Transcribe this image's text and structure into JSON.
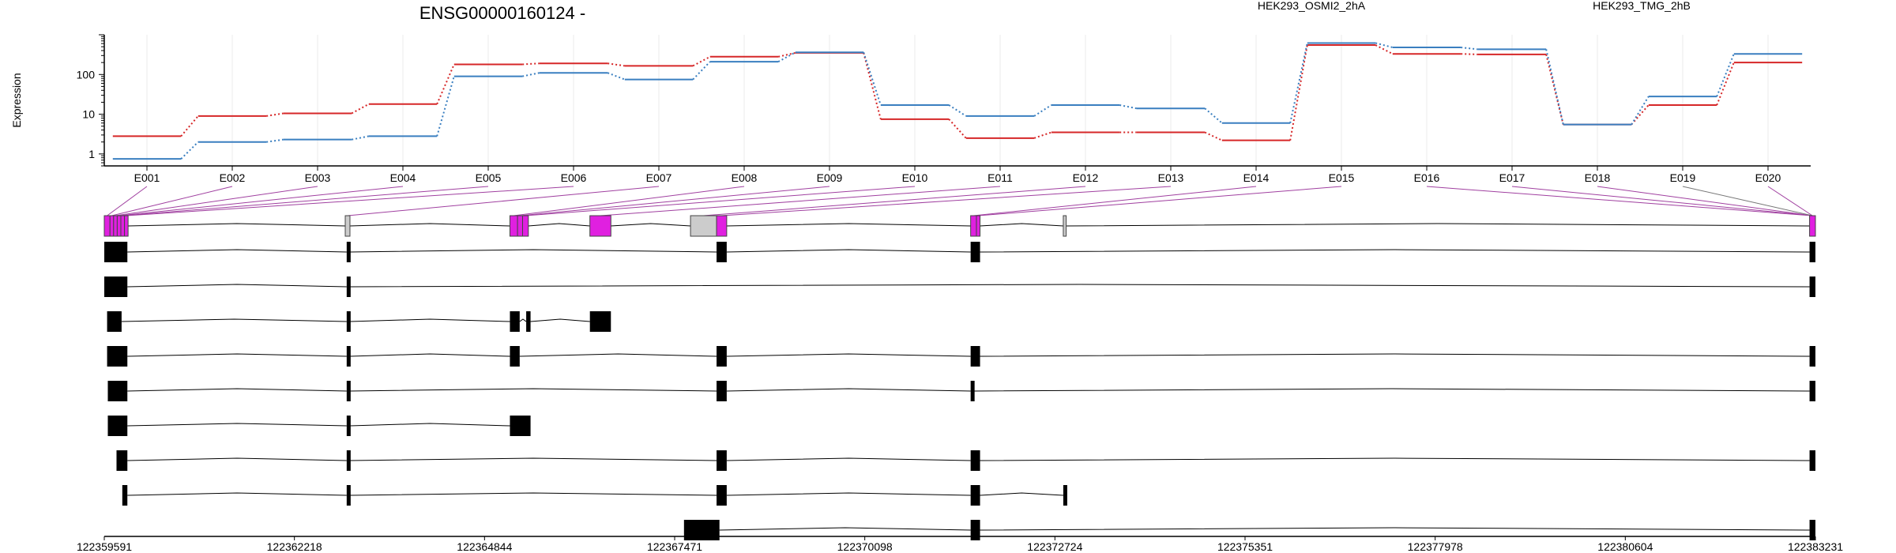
{
  "chart_data": {
    "type": "line",
    "title": "ENSG00000160124 -",
    "ylabel": "Expression",
    "yscale": "log",
    "ylim": [
      0.5,
      1000
    ],
    "ytick_labels": [
      "1",
      "10",
      "100"
    ],
    "ytick_values": [
      1,
      10,
      100
    ],
    "grid": true,
    "legend_position": "top-right",
    "categories": [
      "E001",
      "E002",
      "E003",
      "E004",
      "E005",
      "E006",
      "E007",
      "E008",
      "E009",
      "E010",
      "E011",
      "E012",
      "E013",
      "E014",
      "E015",
      "E016",
      "E017",
      "E018",
      "E019",
      "E020"
    ],
    "series": [
      {
        "name": "HEK293_OSMI2_2hA",
        "color": "#d62728",
        "values": [
          2.8,
          9.0,
          10.5,
          18,
          180,
          190,
          165,
          280,
          350,
          7.5,
          2.5,
          3.5,
          3.5,
          2.2,
          550,
          330,
          320,
          5.5,
          17,
          200
        ]
      },
      {
        "name": "HEK293_TMG_2hB",
        "color": "#3a7fc0",
        "values": [
          0.75,
          2.0,
          2.3,
          2.8,
          90,
          110,
          75,
          210,
          360,
          17,
          9.0,
          17,
          14,
          6.0,
          620,
          480,
          430,
          5.5,
          28,
          330
        ]
      }
    ],
    "gene_model": {
      "coord_range": [
        122359591,
        122383231
      ],
      "coord_tick_labels": [
        "122359591",
        "122362218",
        "122364844",
        "122367471",
        "122370098",
        "122372724",
        "122375351",
        "122377978",
        "122380604",
        "122383231"
      ],
      "exon_bins": [
        {
          "start": 122359591,
          "end": 122359670,
          "status": "tested"
        },
        {
          "start": 122359670,
          "end": 122359720,
          "status": "tested"
        },
        {
          "start": 122359720,
          "end": 122359770,
          "status": "tested"
        },
        {
          "start": 122359770,
          "end": 122359820,
          "status": "tested"
        },
        {
          "start": 122359820,
          "end": 122359870,
          "status": "tested"
        },
        {
          "start": 122359870,
          "end": 122359920,
          "status": "tested"
        },
        {
          "start": 122362920,
          "end": 122362985,
          "status": "untested"
        },
        {
          "start": 122365195,
          "end": 122365300,
          "status": "tested"
        },
        {
          "start": 122365300,
          "end": 122365370,
          "status": "tested"
        },
        {
          "start": 122365370,
          "end": 122365450,
          "status": "tested"
        },
        {
          "start": 122366300,
          "end": 122366590,
          "status": "tested"
        },
        {
          "start": 122367690,
          "end": 122368050,
          "status": "untested"
        },
        {
          "start": 122368050,
          "end": 122368190,
          "status": "tested"
        },
        {
          "start": 122371560,
          "end": 122371640,
          "status": "tested"
        },
        {
          "start": 122371640,
          "end": 122371690,
          "status": "tested"
        },
        {
          "start": 122372840,
          "end": 122372880,
          "status": "untested"
        },
        {
          "start": 122383150,
          "end": 122383231,
          "status": "tested"
        }
      ],
      "bin_to_category": [
        0,
        1,
        2,
        3,
        4,
        5,
        6,
        7,
        8,
        9,
        10,
        11,
        12,
        13,
        14,
        16,
        16,
        16,
        16,
        16
      ],
      "transcripts": [
        [
          [
            122359591,
            122359910
          ],
          [
            122362940,
            122362985
          ],
          [
            122368050,
            122368190
          ],
          [
            122371560,
            122371690
          ],
          [
            122383150,
            122383231
          ]
        ],
        [
          [
            122359591,
            122359910
          ],
          [
            122362940,
            122362985
          ],
          [
            122383150,
            122383231
          ]
        ],
        [
          [
            122359630,
            122359830
          ],
          [
            122362940,
            122362985
          ],
          [
            122365195,
            122365330
          ],
          [
            122365420,
            122365480
          ],
          [
            122366300,
            122366590
          ]
        ],
        [
          [
            122359630,
            122359910
          ],
          [
            122362940,
            122362985
          ],
          [
            122365195,
            122365330
          ],
          [
            122368050,
            122368190
          ],
          [
            122371560,
            122371690
          ],
          [
            122383150,
            122383231
          ]
        ],
        [
          [
            122359640,
            122359910
          ],
          [
            122362940,
            122362985
          ],
          [
            122368050,
            122368190
          ],
          [
            122371560,
            122371610
          ],
          [
            122383150,
            122383231
          ]
        ],
        [
          [
            122359640,
            122359910
          ],
          [
            122362940,
            122362985
          ],
          [
            122365195,
            122365480
          ]
        ],
        [
          [
            122359760,
            122359910
          ],
          [
            122362940,
            122362985
          ],
          [
            122368050,
            122368190
          ],
          [
            122371560,
            122371690
          ],
          [
            122383150,
            122383231
          ]
        ],
        [
          [
            122359840,
            122359910
          ],
          [
            122362940,
            122362985
          ],
          [
            122368050,
            122368190
          ],
          [
            122371560,
            122371690
          ],
          [
            122372840,
            122372880
          ]
        ],
        [
          [
            122367600,
            122368090
          ],
          [
            122371560,
            122371690
          ],
          [
            122383150,
            122383231
          ]
        ]
      ]
    }
  }
}
